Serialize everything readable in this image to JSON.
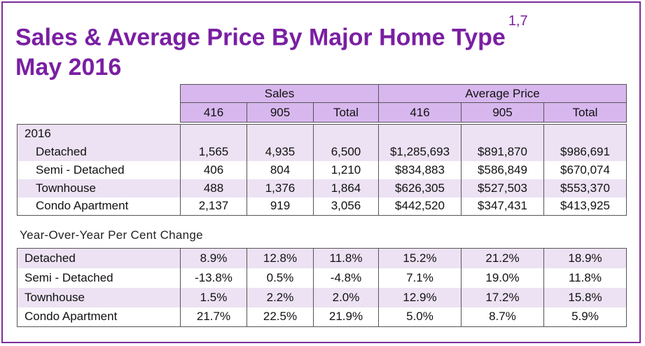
{
  "title": {
    "line1": "Sales & Average Price By Major Home Type",
    "superscript": "1,7",
    "line2": "May 2016"
  },
  "header": {
    "groups": [
      "Sales",
      "Average Price"
    ],
    "columns": [
      "416",
      "905",
      "Total",
      "416",
      "905",
      "Total"
    ]
  },
  "year_label": "2016",
  "rows": [
    {
      "label": "Detached",
      "values": [
        "1,565",
        "4,935",
        "6,500",
        "$1,285,693",
        "$891,870",
        "$986,691"
      ]
    },
    {
      "label": "Semi - Detached",
      "values": [
        "406",
        "804",
        "1,210",
        "$834,883",
        "$586,849",
        "$670,074"
      ]
    },
    {
      "label": "Townhouse",
      "values": [
        "488",
        "1,376",
        "1,864",
        "$626,305",
        "$527,503",
        "$553,370"
      ]
    },
    {
      "label": "Condo Apartment",
      "values": [
        "2,137",
        "919",
        "3,056",
        "$442,520",
        "$347,431",
        "$413,925"
      ]
    }
  ],
  "yoy": {
    "title": "Year-Over-Year Per Cent Change",
    "rows": [
      {
        "label": "Detached",
        "values": [
          "8.9%",
          "12.8%",
          "11.8%",
          "15.2%",
          "21.2%",
          "18.9%"
        ]
      },
      {
        "label": "Semi - Detached",
        "values": [
          "-13.8%",
          "0.5%",
          "-4.8%",
          "7.1%",
          "19.0%",
          "11.8%"
        ]
      },
      {
        "label": "Townhouse",
        "values": [
          "1.5%",
          "2.2%",
          "2.0%",
          "12.9%",
          "17.2%",
          "15.8%"
        ]
      },
      {
        "label": "Condo Apartment",
        "values": [
          "21.7%",
          "22.5%",
          "21.9%",
          "5.0%",
          "8.7%",
          "5.9%"
        ]
      }
    ]
  }
}
